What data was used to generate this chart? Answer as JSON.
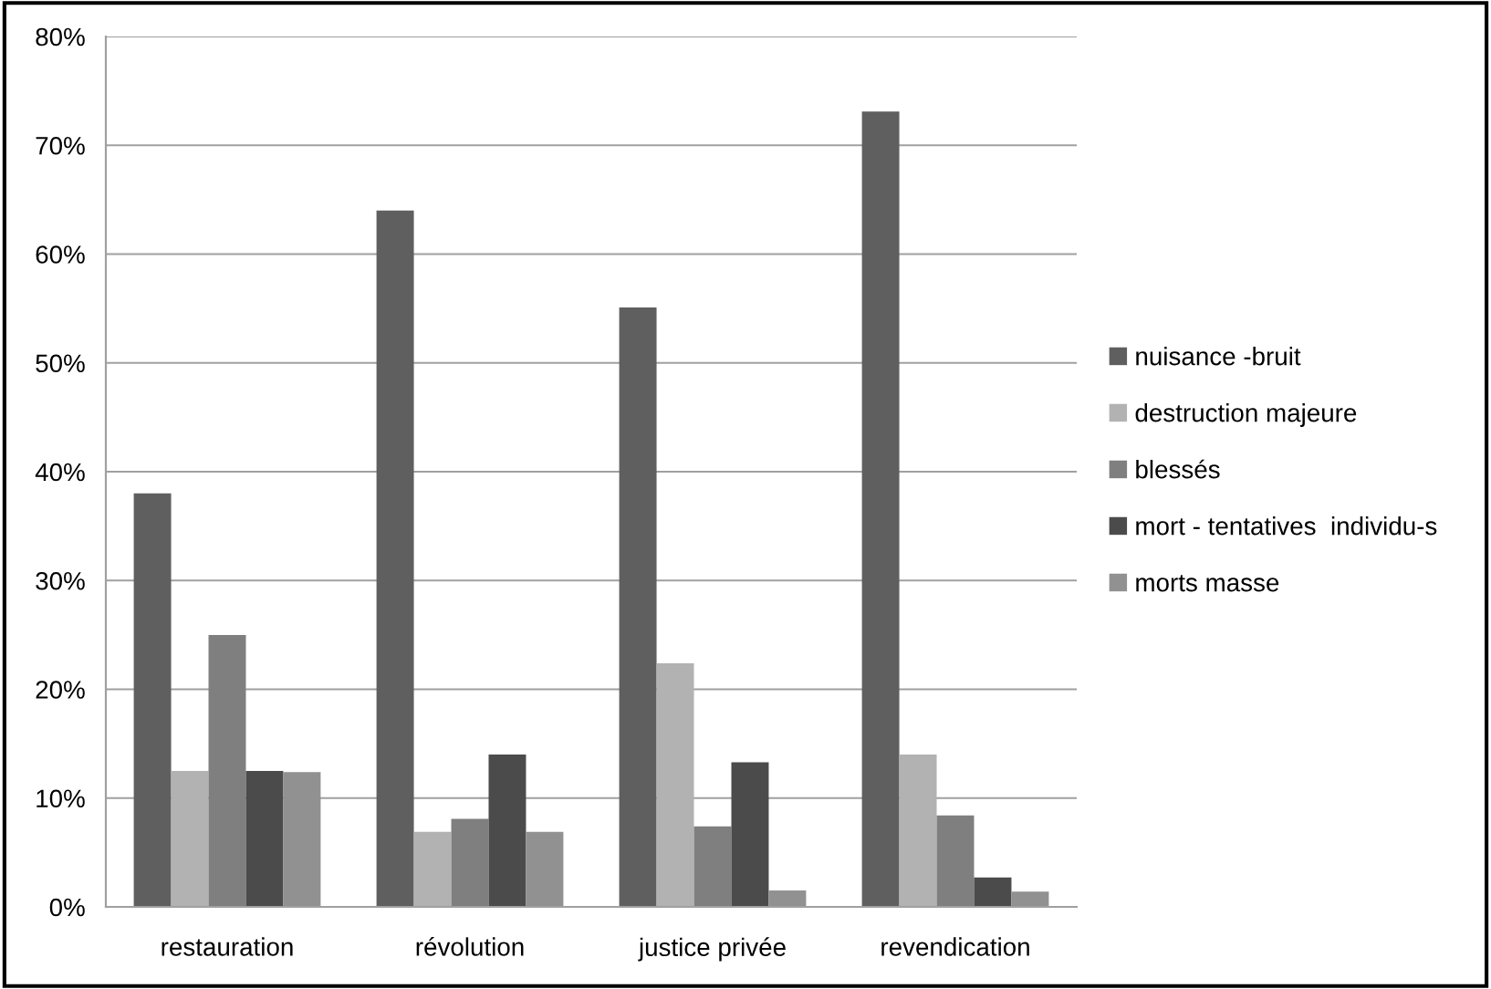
{
  "chart_data": {
    "type": "bar",
    "categories": [
      "restauration",
      "révolution",
      "justice privée",
      "revendication"
    ],
    "series": [
      {
        "name": "nuisance -bruit",
        "color": "#5f5f5f",
        "values": [
          38,
          64,
          55.1,
          73.1
        ]
      },
      {
        "name": "destruction majeure",
        "color": "#b2b2b2",
        "values": [
          12.5,
          6.9,
          22.4,
          14
        ]
      },
      {
        "name": "blessés",
        "color": "#7f7f7f",
        "values": [
          25,
          8.1,
          7.4,
          8.4
        ]
      },
      {
        "name": "mort - tentatives  individu-s",
        "color": "#4b4b4b",
        "values": [
          12.5,
          14,
          13.3,
          2.7
        ]
      },
      {
        "name": "morts masse",
        "color": "#919191",
        "values": [
          12.4,
          6.9,
          1.5,
          1.4
        ]
      }
    ],
    "ylim": [
      0,
      80
    ],
    "yticks": [
      {
        "value": 0,
        "label": "0%"
      },
      {
        "value": 10,
        "label": "10%"
      },
      {
        "value": 20,
        "label": "20%"
      },
      {
        "value": 30,
        "label": "30%"
      },
      {
        "value": 40,
        "label": "40%"
      },
      {
        "value": 50,
        "label": "50%"
      },
      {
        "value": 60,
        "label": "60%"
      },
      {
        "value": 70,
        "label": "70%"
      },
      {
        "value": 80,
        "label": "80%"
      }
    ],
    "grid": "y",
    "legend": "right"
  }
}
